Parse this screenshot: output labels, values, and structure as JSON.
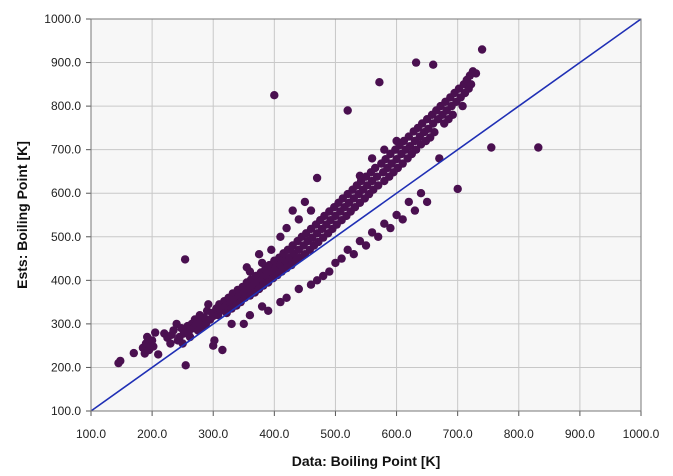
{
  "chart_data": {
    "type": "scatter",
    "title": "",
    "xlabel": "Data: Boiling Point [K]",
    "ylabel": "Ests: Boiling Point [K]",
    "xlim": [
      100,
      1000
    ],
    "ylim": [
      100,
      1000
    ],
    "x_ticks": [
      "100.0",
      "200.0",
      "300.0",
      "400.0",
      "500.0",
      "600.0",
      "700.0",
      "800.0",
      "900.0",
      "1000.0"
    ],
    "y_ticks": [
      "100.0",
      "200.0",
      "300.0",
      "400.0",
      "500.0",
      "600.0",
      "700.0",
      "800.0",
      "900.0",
      "1000.0"
    ],
    "grid": true,
    "plot_background": "#f7f7f7",
    "point_color": "#4a1050",
    "reference_line": {
      "from": [
        100,
        100
      ],
      "to": [
        1000,
        1000
      ],
      "color": "#1f2fb5"
    },
    "series": [
      {
        "points": [
          [
            145,
            210
          ],
          [
            148,
            215
          ],
          [
            170,
            233
          ],
          [
            185,
            245
          ],
          [
            188,
            232
          ],
          [
            190,
            255
          ],
          [
            192,
            270
          ],
          [
            195,
            240
          ],
          [
            198,
            250
          ],
          [
            200,
            262
          ],
          [
            202,
            248
          ],
          [
            205,
            280
          ],
          [
            210,
            230
          ],
          [
            220,
            278
          ],
          [
            225,
            268
          ],
          [
            230,
            255
          ],
          [
            232,
            275
          ],
          [
            235,
            285
          ],
          [
            240,
            300
          ],
          [
            242,
            262
          ],
          [
            245,
            270
          ],
          [
            248,
            290
          ],
          [
            250,
            255
          ],
          [
            252,
            278
          ],
          [
            254,
            448
          ],
          [
            255,
            205
          ],
          [
            258,
            295
          ],
          [
            260,
            282
          ],
          [
            262,
            270
          ],
          [
            265,
            300
          ],
          [
            268,
            290
          ],
          [
            270,
            310
          ],
          [
            272,
            298
          ],
          [
            275,
            285
          ],
          [
            278,
            320
          ],
          [
            280,
            305
          ],
          [
            282,
            292
          ],
          [
            285,
            315
          ],
          [
            288,
            300
          ],
          [
            290,
            330
          ],
          [
            292,
            345
          ],
          [
            295,
            310
          ],
          [
            298,
            325
          ],
          [
            300,
            318
          ],
          [
            302,
            262
          ],
          [
            305,
            335
          ],
          [
            308,
            320
          ],
          [
            310,
            345
          ],
          [
            312,
            330
          ],
          [
            315,
            240
          ],
          [
            318,
            352
          ],
          [
            320,
            340
          ],
          [
            322,
            325
          ],
          [
            325,
            360
          ],
          [
            328,
            348
          ],
          [
            330,
            335
          ],
          [
            332,
            370
          ],
          [
            335,
            355
          ],
          [
            338,
            342
          ],
          [
            340,
            378
          ],
          [
            342,
            362
          ],
          [
            345,
            350
          ],
          [
            348,
            385
          ],
          [
            350,
            372
          ],
          [
            352,
            360
          ],
          [
            355,
            395
          ],
          [
            358,
            380
          ],
          [
            360,
            365
          ],
          [
            362,
            402
          ],
          [
            365,
            388
          ],
          [
            368,
            372
          ],
          [
            370,
            410
          ],
          [
            372,
            395
          ],
          [
            375,
            380
          ],
          [
            378,
            418
          ],
          [
            380,
            402
          ],
          [
            382,
            388
          ],
          [
            385,
            425
          ],
          [
            388,
            410
          ],
          [
            390,
            395
          ],
          [
            392,
            435
          ],
          [
            395,
            420
          ],
          [
            398,
            405
          ],
          [
            400,
            445
          ],
          [
            402,
            428
          ],
          [
            400,
            825
          ],
          [
            405,
            412
          ],
          [
            408,
            452
          ],
          [
            410,
            436
          ],
          [
            412,
            420
          ],
          [
            415,
            462
          ],
          [
            418,
            445
          ],
          [
            420,
            428
          ],
          [
            422,
            470
          ],
          [
            425,
            452
          ],
          [
            428,
            435
          ],
          [
            430,
            480
          ],
          [
            432,
            462
          ],
          [
            435,
            445
          ],
          [
            438,
            490
          ],
          [
            440,
            470
          ],
          [
            442,
            452
          ],
          [
            445,
            500
          ],
          [
            448,
            480
          ],
          [
            450,
            460
          ],
          [
            452,
            508
          ],
          [
            455,
            490
          ],
          [
            458,
            470
          ],
          [
            460,
            518
          ],
          [
            462,
            498
          ],
          [
            465,
            480
          ],
          [
            468,
            528
          ],
          [
            470,
            508
          ],
          [
            472,
            488
          ],
          [
            475,
            538
          ],
          [
            478,
            518
          ],
          [
            480,
            498
          ],
          [
            482,
            548
          ],
          [
            485,
            528
          ],
          [
            488,
            508
          ],
          [
            490,
            558
          ],
          [
            492,
            538
          ],
          [
            495,
            518
          ],
          [
            498,
            568
          ],
          [
            500,
            548
          ],
          [
            502,
            528
          ],
          [
            505,
            578
          ],
          [
            508,
            558
          ],
          [
            510,
            538
          ],
          [
            512,
            588
          ],
          [
            515,
            568
          ],
          [
            518,
            548
          ],
          [
            520,
            598
          ],
          [
            522,
            578
          ],
          [
            525,
            558
          ],
          [
            528,
            608
          ],
          [
            530,
            588
          ],
          [
            532,
            568
          ],
          [
            535,
            618
          ],
          [
            538,
            598
          ],
          [
            540,
            578
          ],
          [
            542,
            628
          ],
          [
            545,
            608
          ],
          [
            548,
            588
          ],
          [
            550,
            638
          ],
          [
            552,
            618
          ],
          [
            555,
            598
          ],
          [
            558,
            648
          ],
          [
            560,
            628
          ],
          [
            562,
            608
          ],
          [
            565,
            658
          ],
          [
            568,
            638
          ],
          [
            570,
            618
          ],
          [
            572,
            855
          ],
          [
            575,
            668
          ],
          [
            578,
            648
          ],
          [
            580,
            628
          ],
          [
            582,
            678
          ],
          [
            585,
            658
          ],
          [
            588,
            638
          ],
          [
            590,
            690
          ],
          [
            592,
            668
          ],
          [
            595,
            648
          ],
          [
            598,
            700
          ],
          [
            600,
            678
          ],
          [
            602,
            658
          ],
          [
            605,
            710
          ],
          [
            608,
            690
          ],
          [
            610,
            668
          ],
          [
            612,
            720
          ],
          [
            615,
            700
          ],
          [
            618,
            680
          ],
          [
            620,
            730
          ],
          [
            622,
            708
          ],
          [
            625,
            690
          ],
          [
            628,
            742
          ],
          [
            630,
            720
          ],
          [
            632,
            700
          ],
          [
            635,
            750
          ],
          [
            638,
            730
          ],
          [
            640,
            712
          ],
          [
            642,
            760
          ],
          [
            645,
            740
          ],
          [
            648,
            720
          ],
          [
            650,
            770
          ],
          [
            652,
            748
          ],
          [
            655,
            728
          ],
          [
            658,
            780
          ],
          [
            660,
            760
          ],
          [
            662,
            740
          ],
          [
            665,
            790
          ],
          [
            668,
            770
          ],
          [
            670,
            680
          ],
          [
            672,
            800
          ],
          [
            675,
            780
          ],
          [
            678,
            760
          ],
          [
            680,
            810
          ],
          [
            682,
            790
          ],
          [
            685,
            770
          ],
          [
            688,
            820
          ],
          [
            690,
            800
          ],
          [
            692,
            780
          ],
          [
            695,
            830
          ],
          [
            698,
            810
          ],
          [
            700,
            610
          ],
          [
            702,
            840
          ],
          [
            705,
            820
          ],
          [
            708,
            800
          ],
          [
            710,
            850
          ],
          [
            712,
            830
          ],
          [
            715,
            860
          ],
          [
            718,
            840
          ],
          [
            720,
            870
          ],
          [
            722,
            850
          ],
          [
            725,
            880
          ],
          [
            730,
            875
          ],
          [
            740,
            930
          ],
          [
            755,
            705
          ],
          [
            832,
            705
          ],
          [
            632,
            900
          ],
          [
            660,
            895
          ],
          [
            300,
            250
          ],
          [
            350,
            300
          ],
          [
            380,
            340
          ],
          [
            420,
            360
          ],
          [
            460,
            390
          ],
          [
            480,
            410
          ],
          [
            500,
            440
          ],
          [
            520,
            470
          ],
          [
            540,
            490
          ],
          [
            560,
            510
          ],
          [
            580,
            530
          ],
          [
            600,
            550
          ],
          [
            620,
            580
          ],
          [
            640,
            600
          ],
          [
            330,
            300
          ],
          [
            360,
            320
          ],
          [
            390,
            330
          ],
          [
            410,
            350
          ],
          [
            440,
            380
          ],
          [
            470,
            400
          ],
          [
            490,
            420
          ],
          [
            510,
            450
          ],
          [
            530,
            460
          ],
          [
            550,
            480
          ],
          [
            570,
            500
          ],
          [
            590,
            520
          ],
          [
            610,
            540
          ],
          [
            630,
            560
          ],
          [
            650,
            580
          ],
          [
            360,
            420
          ],
          [
            380,
            440
          ],
          [
            420,
            520
          ],
          [
            440,
            540
          ],
          [
            460,
            560
          ],
          [
            470,
            635
          ],
          [
            520,
            790
          ],
          [
            540,
            640
          ],
          [
            560,
            680
          ],
          [
            580,
            700
          ],
          [
            600,
            720
          ],
          [
            450,
            580
          ],
          [
            430,
            560
          ],
          [
            410,
            500
          ],
          [
            395,
            470
          ],
          [
            375,
            460
          ],
          [
            355,
            430
          ]
        ]
      }
    ]
  }
}
